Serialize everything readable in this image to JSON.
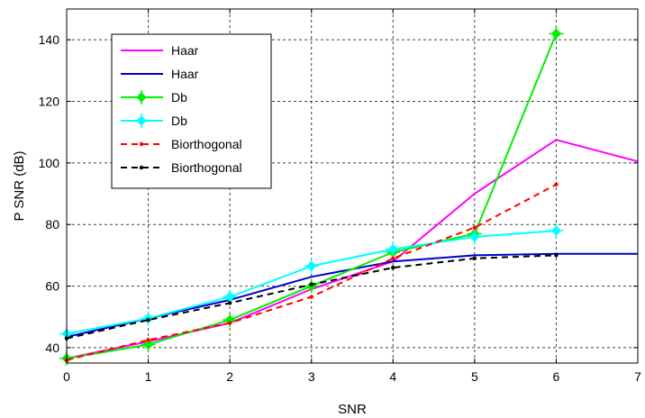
{
  "chart_data": {
    "type": "line",
    "title": "",
    "xlabel": "SNR",
    "ylabel": "P SNR (dB)",
    "xlim": [
      0,
      7
    ],
    "ylim": [
      35,
      150
    ],
    "xticks": [
      "0",
      "1",
      "2",
      "3",
      "4",
      "5",
      "6",
      "7"
    ],
    "yticks": [
      "40",
      "60",
      "80",
      "100",
      "120",
      "140"
    ],
    "grid": true,
    "legend_position": "top-left",
    "series": [
      {
        "name": "Haar",
        "color": "#ff00ff",
        "dash": "solid",
        "marker": "none",
        "x": [
          0,
          1,
          2,
          3,
          4,
          5,
          6,
          7
        ],
        "y": [
          36.5,
          42,
          48,
          59,
          68,
          90,
          107.5,
          100.5
        ]
      },
      {
        "name": "Haar",
        "color": "#0000cc",
        "dash": "solid",
        "marker": "none",
        "x": [
          0,
          1,
          2,
          3,
          4,
          5,
          6,
          7
        ],
        "y": [
          43.5,
          49.5,
          55.5,
          63,
          68,
          70,
          70.5,
          70.5
        ]
      },
      {
        "name": "Db",
        "color": "#00ee00",
        "dash": "solid",
        "marker": "diamond",
        "x": [
          0,
          1,
          2,
          3,
          4,
          5,
          6
        ],
        "y": [
          36.5,
          41,
          49,
          60,
          71,
          77,
          142
        ]
      },
      {
        "name": "Db",
        "color": "#00ffff",
        "dash": "solid",
        "marker": "diamond",
        "x": [
          0,
          1,
          2,
          3,
          4,
          5,
          6
        ],
        "y": [
          44.5,
          49.5,
          56.5,
          66.5,
          72,
          76,
          78
        ]
      },
      {
        "name": "Biorthogonal",
        "color": "#ff0000",
        "dash": "dashed",
        "marker": "dot",
        "x": [
          0,
          1,
          2,
          3,
          4,
          5,
          6
        ],
        "y": [
          36,
          42.5,
          48,
          56.5,
          69,
          79,
          93
        ]
      },
      {
        "name": "Biorthogonal",
        "color": "#000000",
        "dash": "dashed",
        "marker": "dot",
        "x": [
          0,
          1,
          2,
          3,
          4,
          5,
          6
        ],
        "y": [
          43,
          49,
          54.5,
          60.5,
          66,
          69,
          70
        ]
      }
    ]
  }
}
